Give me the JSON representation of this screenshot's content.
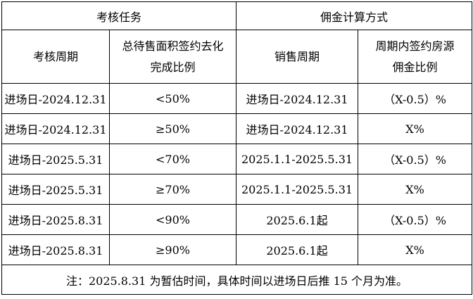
{
  "page": {
    "background": "#ffffff",
    "border_color": "#000000",
    "text_color": "#000000"
  },
  "table": {
    "header_groups": {
      "assessment": "考核任务",
      "commission": "佣金计算方式"
    },
    "columns": [
      "考核周期",
      "总待售面积签约去化\n完成比例",
      "销售周期",
      "周期内签约房源\n佣金比例"
    ],
    "rows": [
      [
        "进场日-2024.12.31",
        "<50%",
        "进场日-2024.12.31",
        "（X-0.5）%"
      ],
      [
        "进场日-2024.12.31",
        "≥50%",
        "进场日-2024.12.31",
        "X%"
      ],
      [
        "进场日-2025.5.31",
        "<70%",
        "2025.1.1-2025.5.31",
        "（X-0.5）%"
      ],
      [
        "进场日-2025.5.31",
        "≥70%",
        "2025.1.1-2025.5.31",
        "X%"
      ],
      [
        "进场日-2025.8.31",
        "<90%",
        "2025.6.1起",
        "（X-0.5）%"
      ],
      [
        "进场日-2025.8.31",
        "≥90%",
        "2025.6.1起",
        "X%"
      ]
    ],
    "note": "注：2025.8.31 为暂估时间，具体时间以进场日后推 15 个月为准。"
  }
}
